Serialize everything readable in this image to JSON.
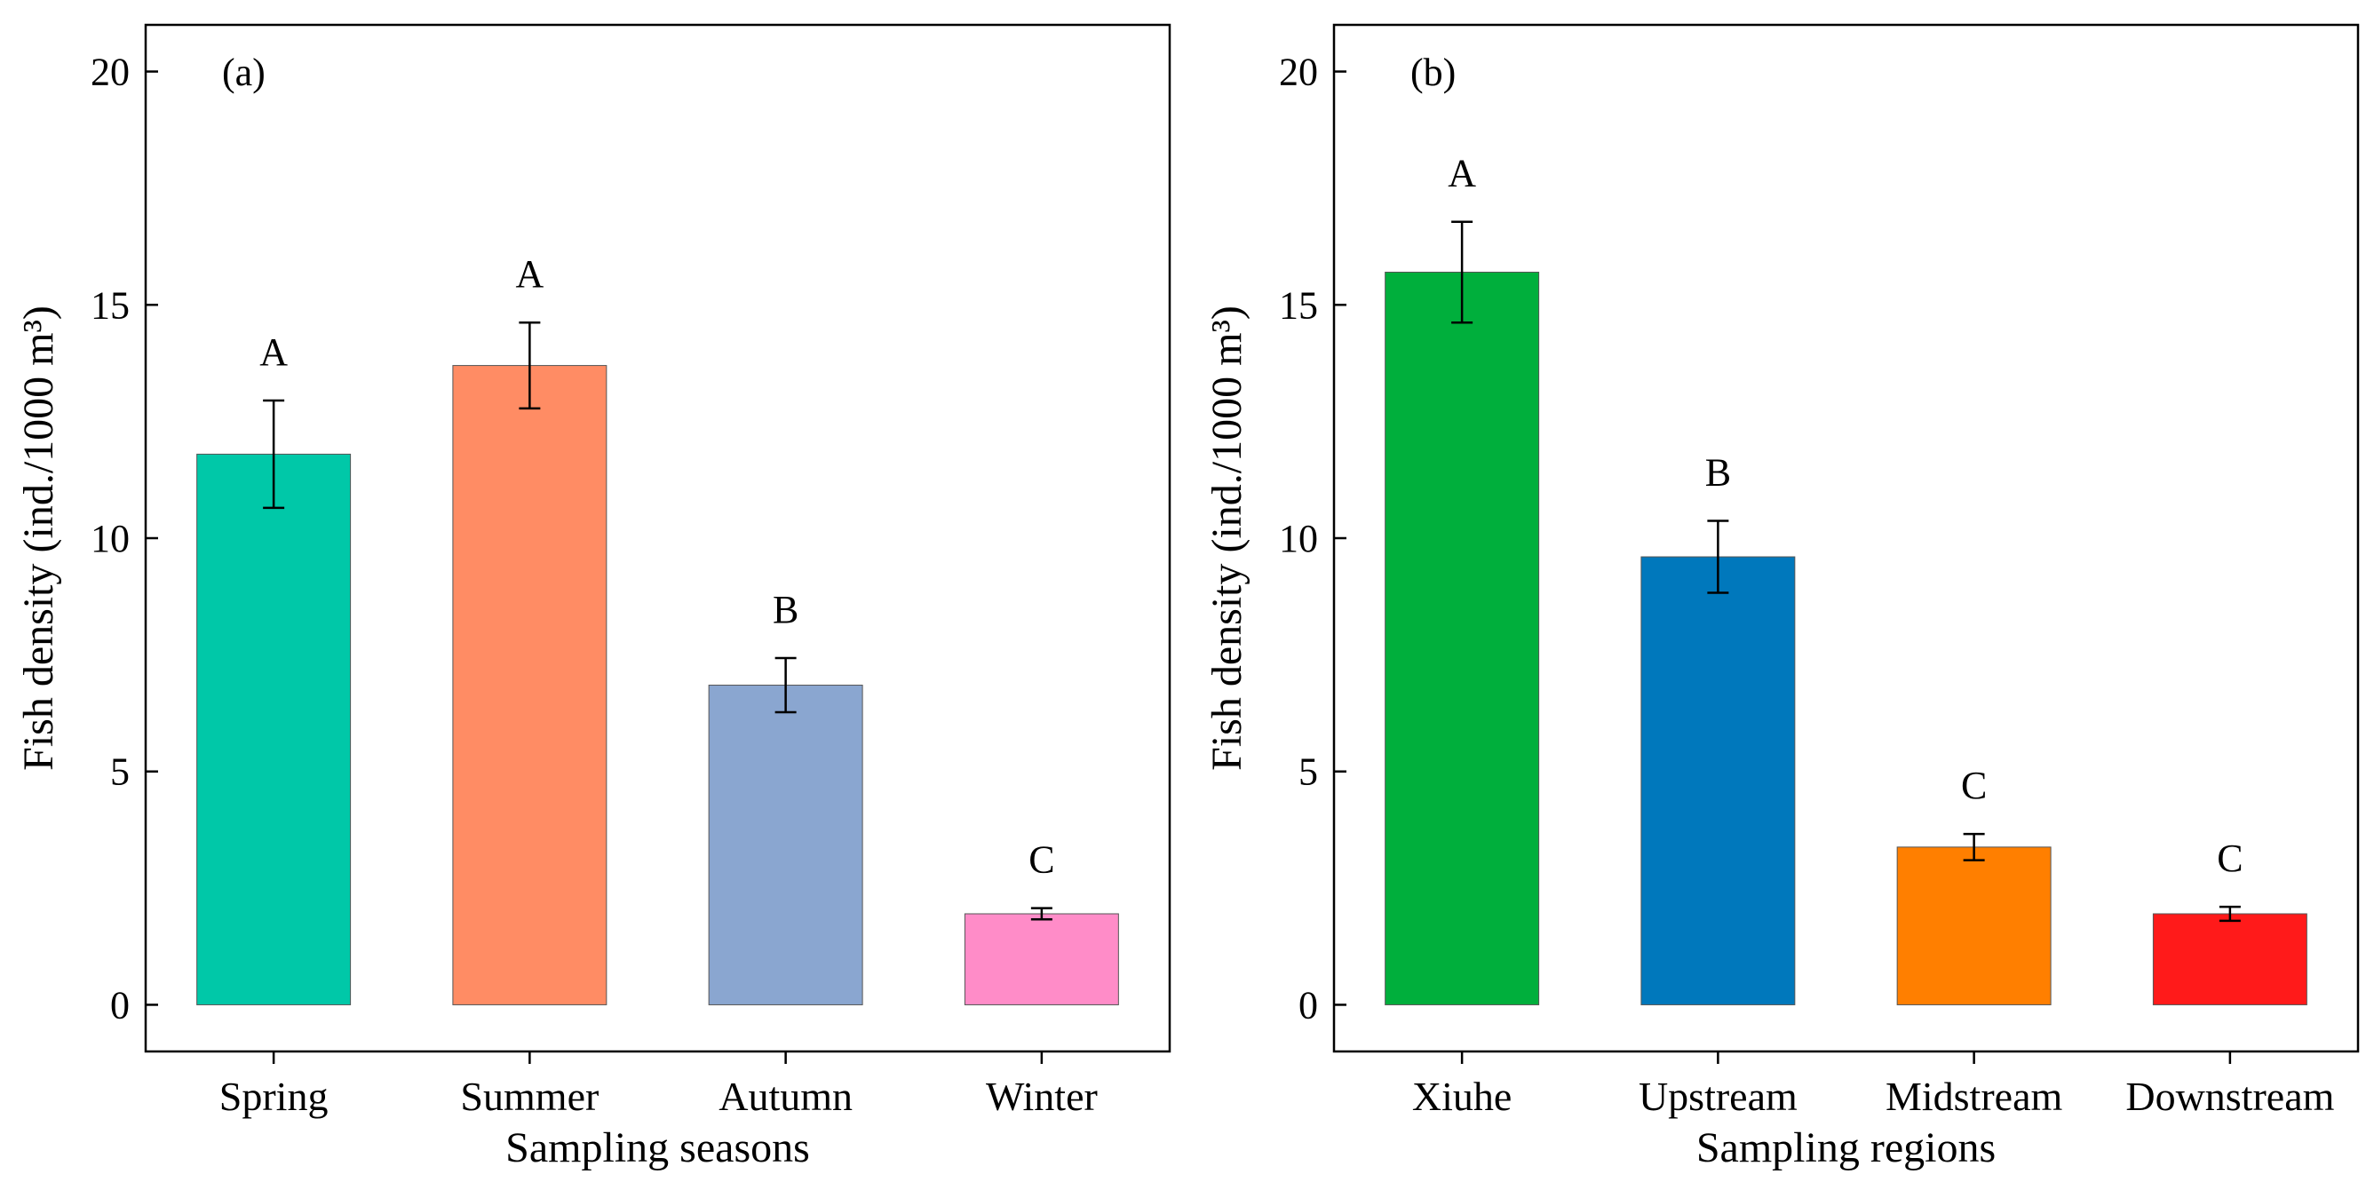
{
  "chart_data": [
    {
      "type": "bar",
      "panel_label": "(a)",
      "xlabel": "Sampling seasons",
      "ylabel": "Fish density (ind./1000 m³)",
      "ylim": [
        -1,
        21
      ],
      "yticks": [
        "0",
        "5",
        "10",
        "15",
        "20"
      ],
      "categories": [
        "Spring",
        "Summer",
        "Autumn",
        "Winter"
      ],
      "values": [
        11.8,
        13.7,
        6.85,
        1.95
      ],
      "errors": [
        1.15,
        0.92,
        0.58,
        0.12
      ],
      "significance": [
        "A",
        "A",
        "B",
        "C"
      ],
      "colors": [
        "#00C8A8",
        "#FF8C64",
        "#8AA6D0",
        "#FF8CC8"
      ]
    },
    {
      "type": "bar",
      "panel_label": "(b)",
      "xlabel": "Sampling regions",
      "ylabel": "Fish density (ind./1000 m³)",
      "ylim": [
        -1,
        21
      ],
      "yticks": [
        "0",
        "5",
        "10",
        "15",
        "20"
      ],
      "categories": [
        "Xiuhe",
        "Upstream",
        "Midstream",
        "Downstream"
      ],
      "values": [
        15.7,
        9.6,
        3.38,
        1.95
      ],
      "errors": [
        1.08,
        0.77,
        0.28,
        0.15
      ],
      "significance": [
        "A",
        "B",
        "C",
        "C"
      ],
      "colors": [
        "#00AF3C",
        "#0078BC",
        "#FF7F00",
        "#FF1A1A"
      ]
    }
  ]
}
